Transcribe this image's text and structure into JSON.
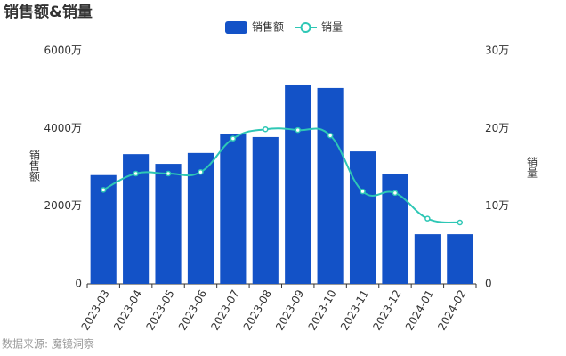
{
  "chart_data": {
    "type": "bar",
    "title": "销售额&销量",
    "categories": [
      "2023-03",
      "2023-04",
      "2023-05",
      "2023-06",
      "2023-07",
      "2023-08",
      "2023-09",
      "2023-10",
      "2023-11",
      "2023-12",
      "2024-01",
      "2024-02"
    ],
    "series": [
      {
        "name": "销售额",
        "type": "bar",
        "color": "#1352c7",
        "values": [
          2800,
          3340,
          3090,
          3370,
          3850,
          3780,
          5130,
          5040,
          3410,
          2820,
          1280,
          1280
        ]
      },
      {
        "name": "销量",
        "type": "line",
        "axis": "y2",
        "color": "#2ec7b5",
        "values": [
          12.1,
          14.2,
          14.2,
          14.4,
          18.7,
          19.9,
          19.8,
          19.1,
          11.9,
          11.7,
          8.4,
          7.9
        ]
      }
    ],
    "ylabel": "销售额",
    "y2label": "销量",
    "ylim": [
      0,
      6000
    ],
    "yticks": [
      0,
      {
        "value": 2000,
        "label": "2000万"
      },
      {
        "value": 4000,
        "label": "4000万"
      },
      {
        "value": 6000,
        "label": "6000万"
      }
    ],
    "y2lim": [
      0,
      30
    ],
    "y2ticks": [
      0,
      {
        "value": 10,
        "label": "10万"
      },
      {
        "value": 20,
        "label": "20万"
      },
      {
        "value": 30,
        "label": "30万"
      }
    ],
    "grid": false,
    "legend": "top",
    "source": "数据来源: 魔镜洞察"
  }
}
